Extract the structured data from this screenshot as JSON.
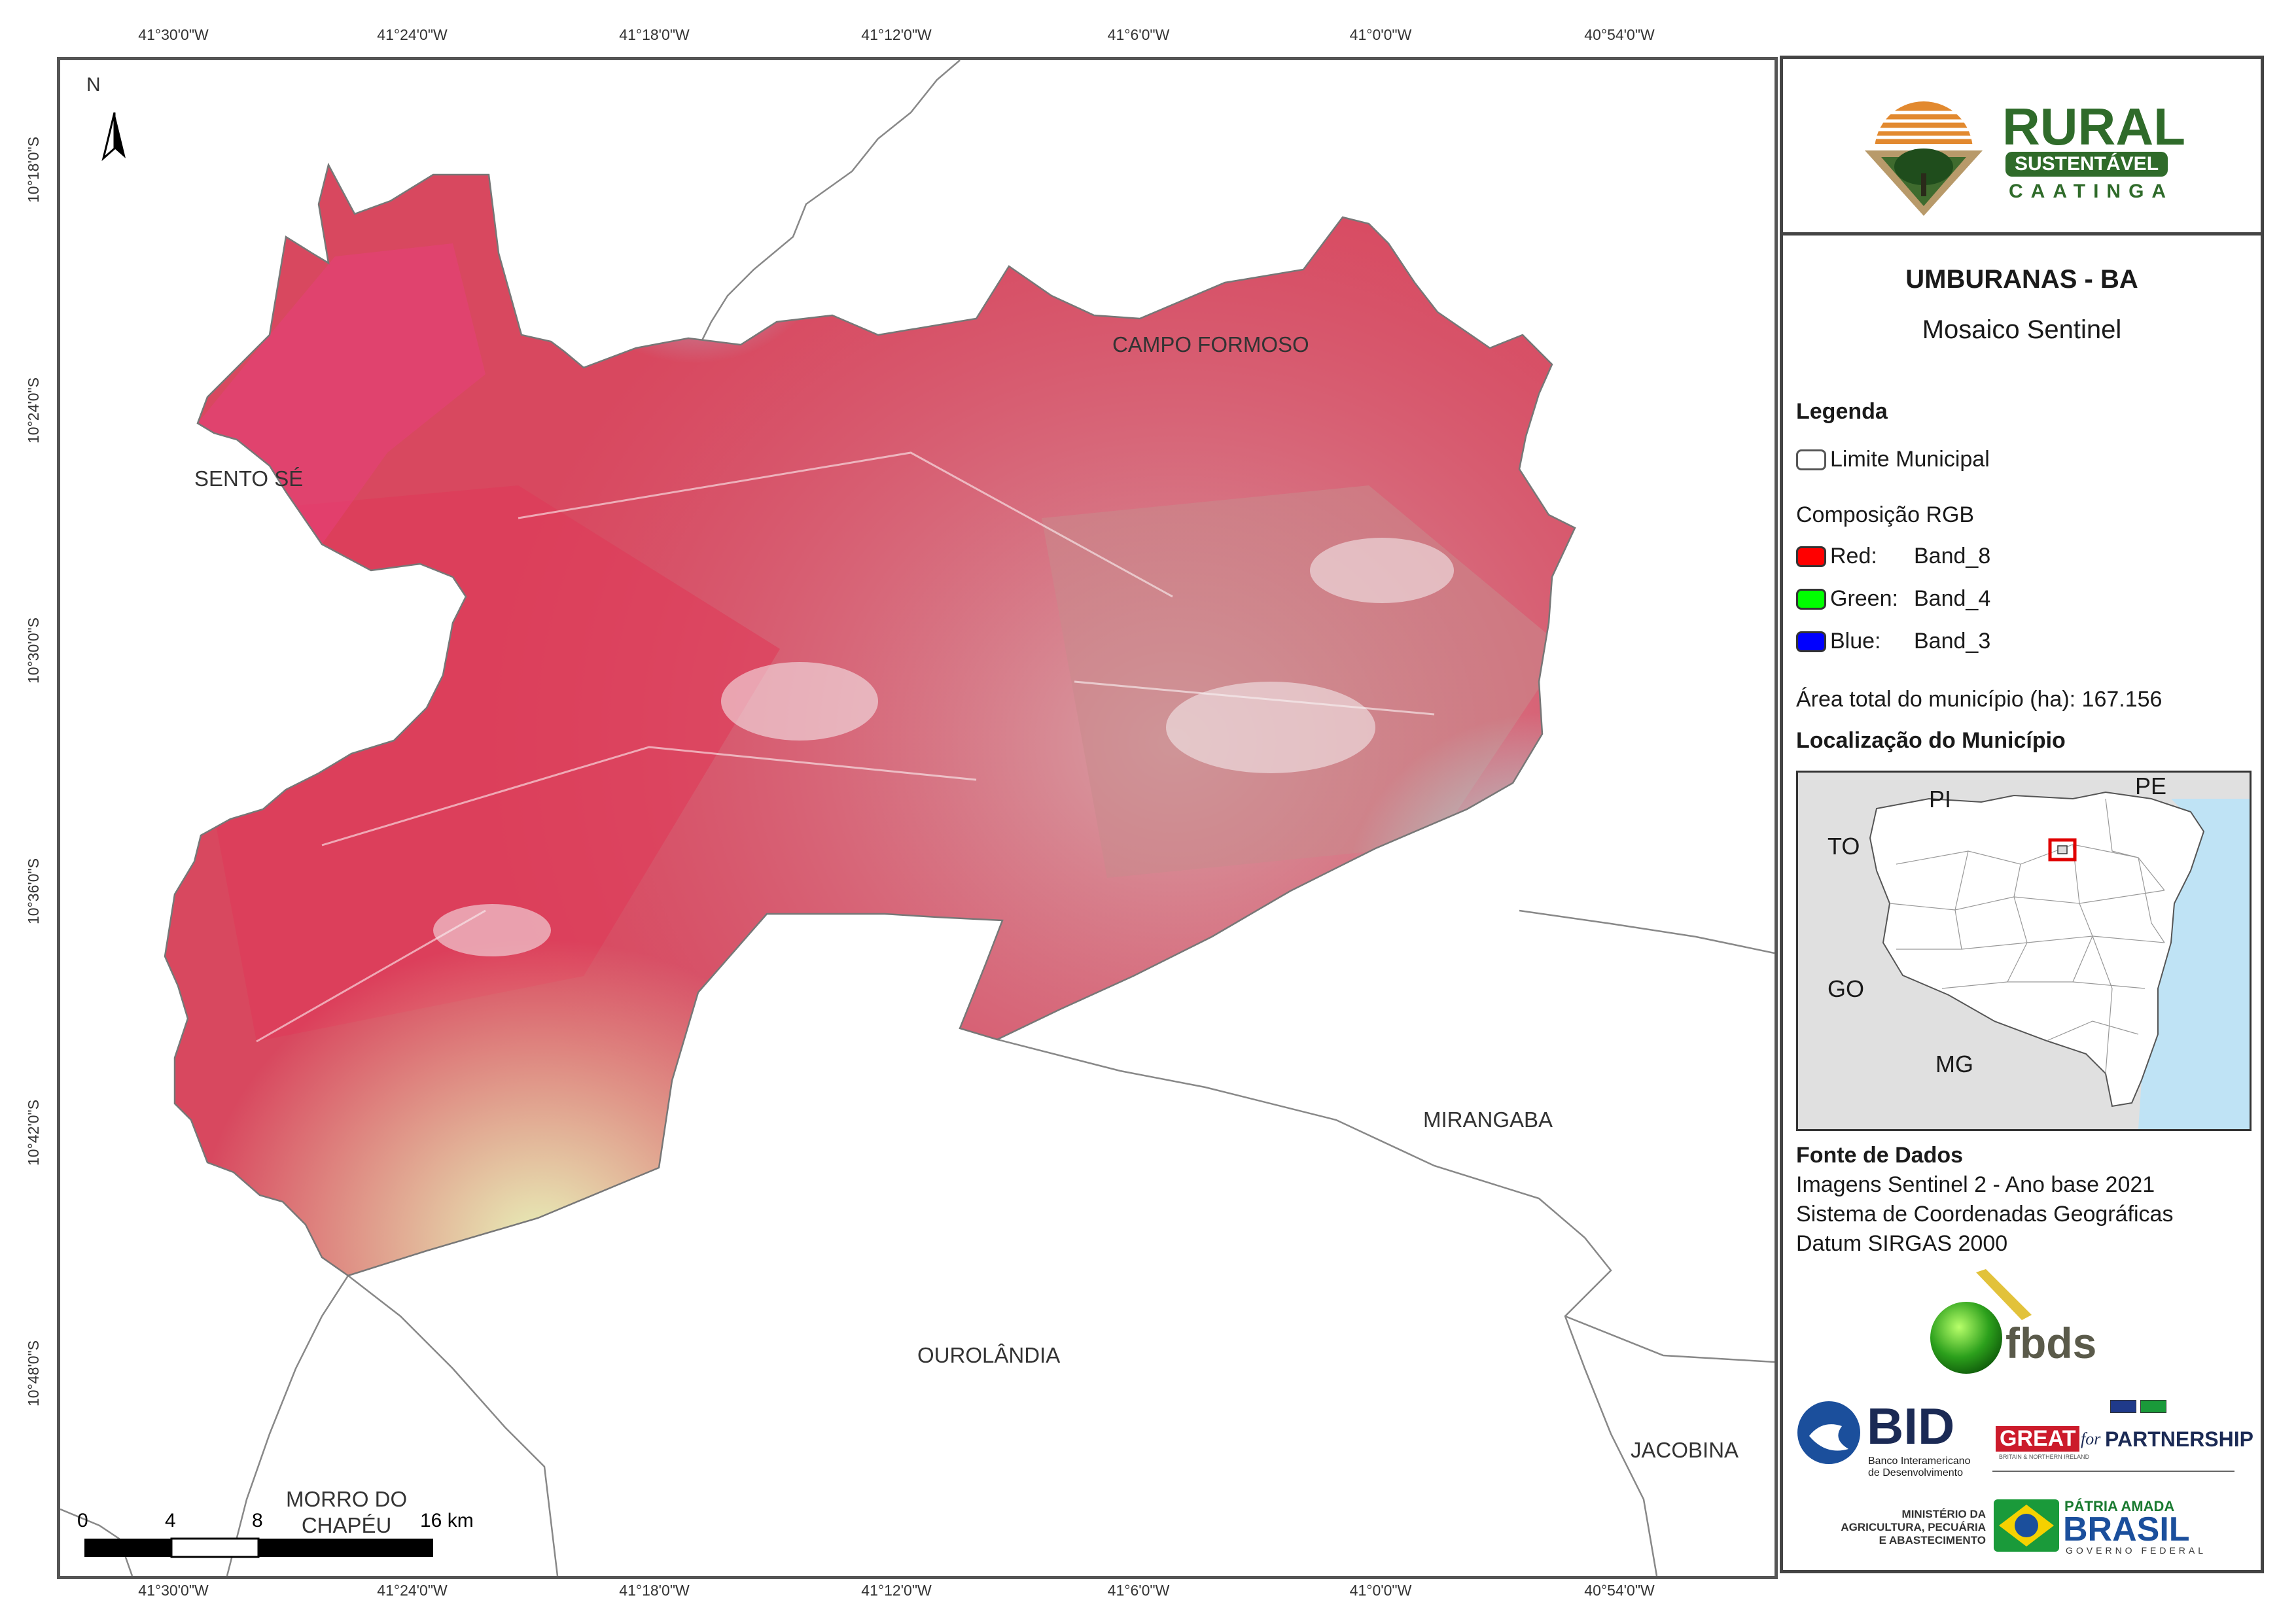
{
  "grid": {
    "longitudes": [
      "41°30'0\"W",
      "41°24'0\"W",
      "41°18'0\"W",
      "41°12'0\"W",
      "41°6'0\"W",
      "41°0'0\"W",
      "40°54'0\"W"
    ],
    "latitudes": [
      "10°18'0\"S",
      "10°24'0\"S",
      "10°30'0\"S",
      "10°36'0\"S",
      "10°42'0\"S",
      "10°48'0\"S"
    ]
  },
  "map": {
    "north_label": "N",
    "neighbors": {
      "campo_formoso": "CAMPO FORMOSO",
      "sento_se": "SENTO SÉ",
      "mirangaba": "MIRANGABA",
      "ourolandia": "OUROLÂNDIA",
      "jacobina": "JACOBINA",
      "morro_line1": "MORRO DO",
      "morro_line2": "CHAPÉU"
    },
    "scale": {
      "labels": [
        "0",
        "4",
        "8",
        "16 km"
      ]
    }
  },
  "panel": {
    "logo": {
      "line1": "RURAL",
      "line2": "SUSTENTÁVEL",
      "line3": "CAATINGA"
    },
    "title": "UMBURANAS - BA",
    "subtitle": "Mosaico Sentinel",
    "legend": {
      "heading": "Legenda",
      "limit_label": "Limite Municipal",
      "rgb_heading": "Composição RGB",
      "bands": [
        {
          "channel": "Red:",
          "band": "Band_8",
          "color": "#ff0000"
        },
        {
          "channel": "Green:",
          "band": "Band_4",
          "color": "#00ff00"
        },
        {
          "channel": "Blue:",
          "band": "Band_3",
          "color": "#0000ff"
        }
      ],
      "area": "Área total do município (ha): 167.156"
    },
    "location": {
      "heading": "Localização do Município",
      "states": {
        "pi": "PI",
        "pe": "PE",
        "to": "TO",
        "go": "GO",
        "mg": "MG"
      }
    },
    "source": {
      "heading": "Fonte de Dados",
      "lines": [
        "Imagens Sentinel 2 - Ano base 2021",
        "Sistema de Coordenadas Geográficas",
        "Datum SIRGAS 2000"
      ]
    },
    "sponsors": {
      "fbds": "fbds",
      "bid": "BID",
      "bid_sub1": "Banco Interamericano",
      "bid_sub2": "de Desenvolvimento",
      "great": "GREAT",
      "great_for": "for",
      "partnership": "PARTNERSHIP",
      "great_sub": "BRITAIN & NORTHERN IRELAND",
      "mapa1": "MINISTÉRIO DA",
      "mapa2": "AGRICULTURA, PECUÁRIA",
      "mapa3": "E ABASTECIMENTO",
      "patria": "PÁTRIA AMADA",
      "brasil": "BRASIL",
      "governo": "GOVERNO FEDERAL"
    }
  }
}
